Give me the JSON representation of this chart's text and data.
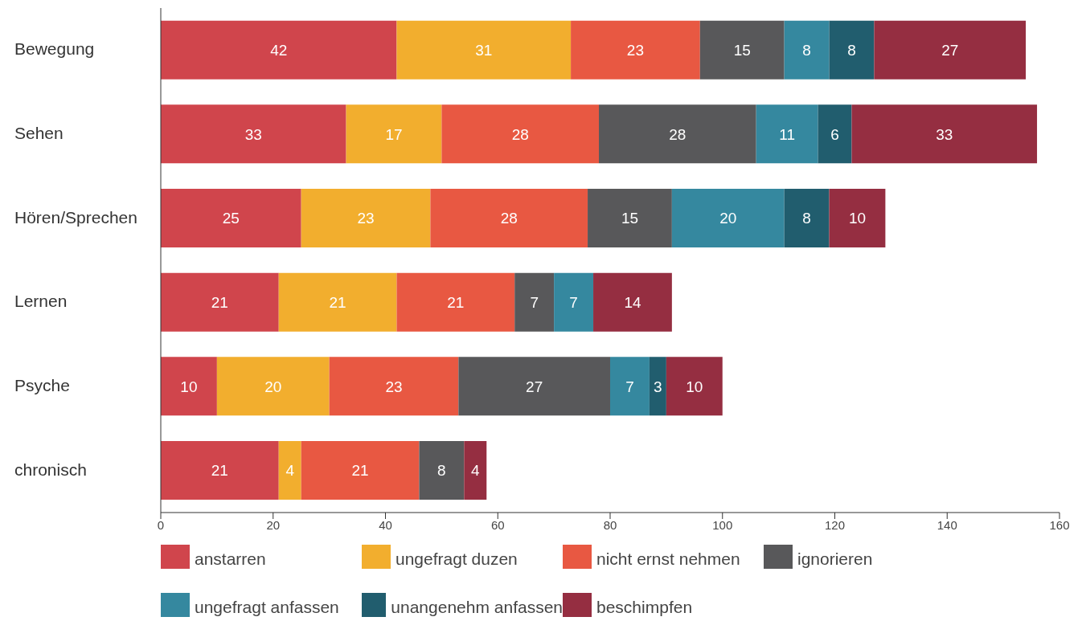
{
  "chart_data": {
    "type": "bar",
    "orientation": "horizontal",
    "stacked": true,
    "data_labels": true,
    "legend": "bottom",
    "grid": false,
    "categories": [
      "Bewegung",
      "Sehen",
      "Hören/Sprechen",
      "Lernen",
      "Psyche",
      "chronisch"
    ],
    "xlim": [
      0,
      160
    ],
    "xticks": [
      0,
      20,
      40,
      60,
      80,
      100,
      120,
      140,
      160
    ],
    "series": [
      {
        "name": "anstarren",
        "color": "#d0454c",
        "values": [
          42,
          33,
          25,
          21,
          10,
          21
        ]
      },
      {
        "name": "ungefragt duzen",
        "color": "#f2ae2e",
        "values": [
          31,
          17,
          23,
          21,
          20,
          4
        ]
      },
      {
        "name": "nicht ernst nehmen",
        "color": "#e85842",
        "values": [
          23,
          28,
          28,
          21,
          23,
          21
        ]
      },
      {
        "name": "ignorieren",
        "color": "#58585a",
        "values": [
          15,
          28,
          15,
          7,
          27,
          8
        ]
      },
      {
        "name": "ungefragt anfassen",
        "color": "#35889f",
        "values": [
          8,
          11,
          20,
          7,
          7,
          null
        ]
      },
      {
        "name": "unangenehm anfassen",
        "color": "#215d6e",
        "values": [
          8,
          6,
          8,
          null,
          3,
          null
        ]
      },
      {
        "name": "beschimpfen",
        "color": "#952e41",
        "values": [
          27,
          33,
          10,
          14,
          10,
          4
        ]
      }
    ]
  }
}
